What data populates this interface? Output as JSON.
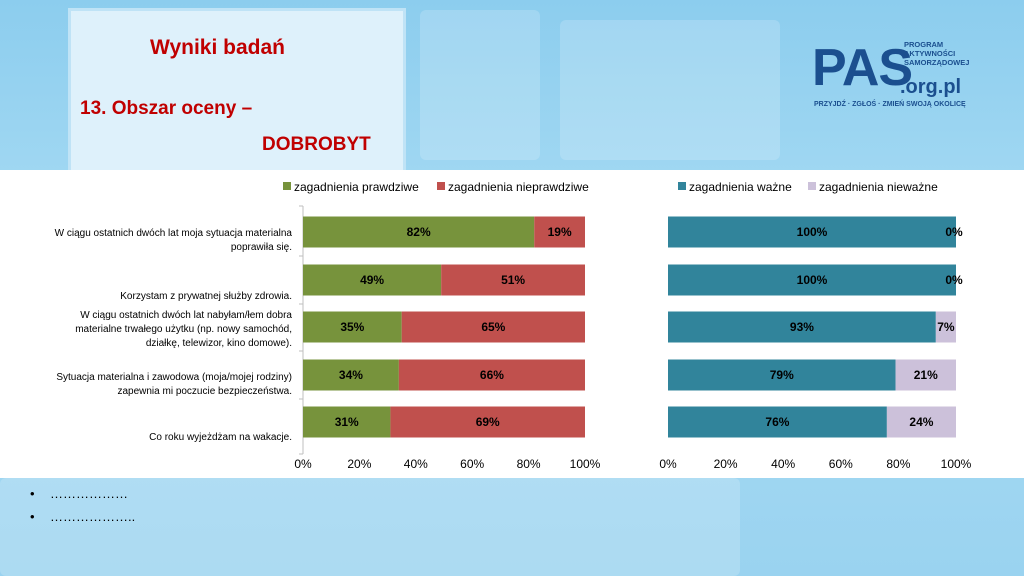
{
  "slide": {
    "title": "Wyniki badań",
    "subtitle_line1": "13. Obszar oceny –",
    "subtitle_line2": "DOBROBYT"
  },
  "logo": {
    "main": "PAS",
    "side_line1": "PROGRAM",
    "side_line2": "AKTYWNOŚCI",
    "side_line3": "SAMORZĄDOWEJ",
    "org": ".org.pl",
    "tagline": "PRZYJDŹ · ZGŁOŚ · ZMIEŃ SWOJĄ OKOLICĘ"
  },
  "bullets": [
    "………………",
    "……………….."
  ],
  "colors": {
    "true": "#77933c",
    "false": "#c0504d",
    "important": "#31849b",
    "unimportant": "#ccc1da"
  },
  "chart_data": [
    {
      "type": "bar",
      "orientation": "horizontal",
      "stacked": true,
      "categories": [
        "W ciągu ostatnich dwóch lat moja sytuacja materialna poprawiła się.",
        "Korzystam z prywatnej służby zdrowia.",
        "W ciągu ostatnich dwóch lat nabyłam/łem dobra materialne trwałego użytku (np. nowy samochód, działkę, telewizor, kino domowe).",
        "Sytuacja materialna i zawodowa (moja/mojej rodziny) zapewnia mi poczucie bezpieczeństwa.",
        "Co roku wyjeżdżam na wakacje."
      ],
      "series": [
        {
          "name": "zagadnienia prawdziwe",
          "values": [
            82,
            49,
            35,
            34,
            31
          ],
          "labels": [
            "82%",
            "49%",
            "35%",
            "34%",
            "31%"
          ]
        },
        {
          "name": "zagadnienia nieprawdziwe",
          "values": [
            19,
            51,
            65,
            66,
            69
          ],
          "labels": [
            "19%",
            "51%",
            "65%",
            "66%",
            "69%"
          ]
        }
      ],
      "xlim": [
        0,
        100
      ],
      "xticks": [
        "0%",
        "20%",
        "40%",
        "60%",
        "80%",
        "100%"
      ],
      "legend": "top"
    },
    {
      "type": "bar",
      "orientation": "horizontal",
      "stacked": true,
      "series": [
        {
          "name": "zagadnienia ważne",
          "values": [
            100,
            100,
            93,
            79,
            76
          ],
          "labels": [
            "100%",
            "100%",
            "93%",
            "79%",
            "76%"
          ]
        },
        {
          "name": "zagadnienia nieważne",
          "values": [
            0,
            0,
            7,
            21,
            24
          ],
          "labels": [
            "0%",
            "0%",
            "7%",
            "21%",
            "24%"
          ]
        }
      ],
      "xlim": [
        0,
        100
      ],
      "xticks": [
        "0%",
        "20%",
        "40%",
        "60%",
        "80%",
        "100%"
      ],
      "legend": "top"
    }
  ]
}
